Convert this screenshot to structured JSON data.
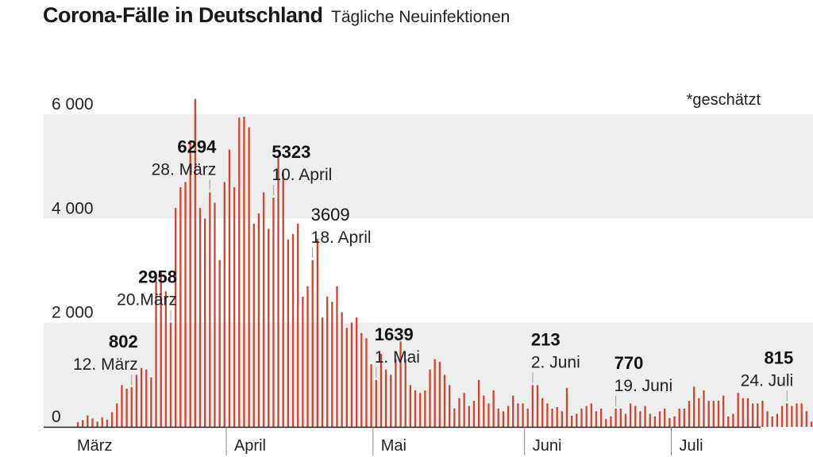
{
  "header": {
    "title": "Corona-Fälle in Deutschland",
    "subtitle": "Tägliche Neuinfektionen"
  },
  "note": "*geschätzt",
  "chart_data": {
    "type": "bar",
    "title": "Corona-Fälle in Deutschland",
    "subtitle": "Tägliche Neuinfektionen",
    "ylim": [
      0,
      6300
    ],
    "yticks": [
      {
        "value": 0,
        "label": "0"
      },
      {
        "value": 2000,
        "label": "2 000"
      },
      {
        "value": 4000,
        "label": "4 000"
      },
      {
        "value": 6000,
        "label": "6 000"
      }
    ],
    "grid": "alternating horizontal bands",
    "bar_color": "#d0452f",
    "start_date": "2020-03-01",
    "values": [
      90,
      130,
      220,
      160,
      100,
      180,
      140,
      280,
      450,
      802,
      730,
      760,
      1000,
      1130,
      1100,
      950,
      2800,
      2958,
      2600,
      2000,
      4200,
      4600,
      4700,
      5500,
      6294,
      4200,
      4000,
      4500,
      4300,
      3200,
      4700,
      5323,
      4600,
      5936,
      5950,
      5750,
      3900,
      4100,
      4500,
      3800,
      4400,
      5200,
      4900,
      3600,
      3700,
      3900,
      2500,
      2700,
      3200,
      3609,
      2100,
      2500,
      2400,
      2700,
      2200,
      1900,
      2000,
      2100,
      1800,
      1700,
      1200,
      900,
      1400,
      1100,
      1000,
      1300,
      1639,
      1300,
      800,
      700,
      650,
      700,
      1100,
      1300,
      1250,
      1000,
      800,
      350,
      550,
      650,
      400,
      500,
      900,
      600,
      450,
      700,
      350,
      300,
      400,
      600,
      450,
      450,
      350,
      800,
      800,
      550,
      450,
      350,
      380,
      300,
      750,
      213,
      250,
      350,
      400,
      450,
      300,
      350,
      150,
      200,
      350,
      350,
      250,
      450,
      400,
      300,
      400,
      250,
      200,
      300,
      350,
      170,
      200,
      350,
      350,
      500,
      770,
      550,
      700,
      500,
      500,
      500,
      600,
      200,
      250,
      650,
      550,
      550,
      450,
      450,
      500,
      300,
      200,
      250,
      400,
      450,
      400,
      450,
      450,
      300,
      100,
      250,
      350,
      350,
      500,
      550,
      500,
      400,
      350,
      400,
      550,
      350,
      450,
      550,
      815
    ]
  },
  "x_axis": [
    {
      "label": "März",
      "day": 0
    },
    {
      "label": "April",
      "day": 31
    },
    {
      "label": "Mai",
      "day": 61
    },
    {
      "label": "Juni",
      "day": 92
    },
    {
      "label": "Juli",
      "day": 122
    }
  ],
  "annotations": [
    {
      "day": 11,
      "value_label": "802",
      "date_label": "12. März",
      "bold": true,
      "align": "end"
    },
    {
      "day": 19,
      "value_label": "2958",
      "date_label": "20.März",
      "bold": true,
      "align": "end"
    },
    {
      "day": 27,
      "value_label": "6294",
      "date_label": "28. März",
      "bold": true,
      "align": "end"
    },
    {
      "day": 40,
      "value_label": "5323",
      "date_label": "10. April",
      "bold": true,
      "align": "start"
    },
    {
      "day": 48,
      "value_label": "3609",
      "date_label": "18. April",
      "bold": false,
      "align": "start"
    },
    {
      "day": 61,
      "value_label": "1639",
      "date_label": "1. Mai",
      "bold": true,
      "align": "start"
    },
    {
      "day": 93,
      "value_label": "213",
      "date_label": "2. Juni",
      "bold": true,
      "align": "start"
    },
    {
      "day": 110,
      "value_label": "770",
      "date_label": "19. Juni",
      "bold": true,
      "align": "start"
    },
    {
      "day": 145,
      "value_label": "815",
      "date_label": "24. Juli",
      "bold": true,
      "align": "end"
    }
  ]
}
